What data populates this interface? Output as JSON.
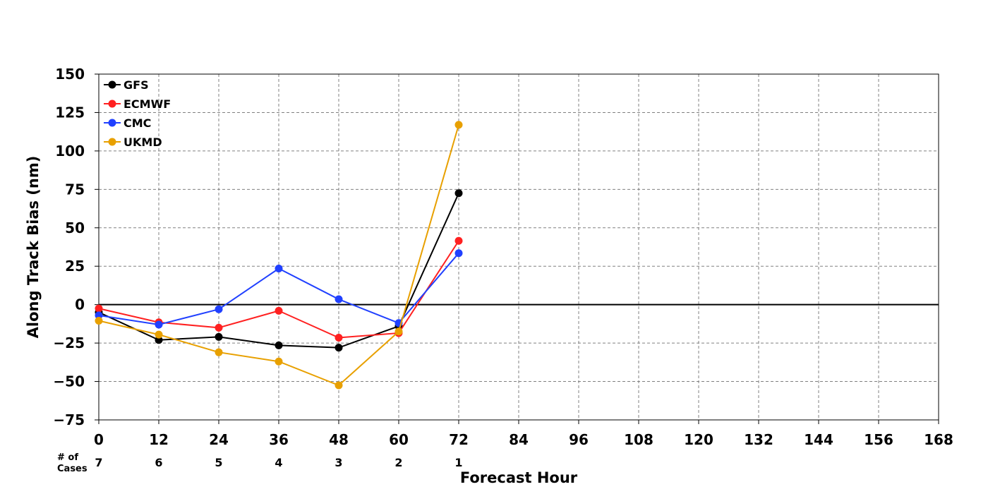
{
  "chart_data": {
    "type": "line",
    "xlabel": "Forecast Hour",
    "ylabel": "Along Track Bias (nm)",
    "xlim": [
      0,
      168
    ],
    "ylim": [
      -75,
      150
    ],
    "x_ticks": [
      0,
      12,
      24,
      36,
      48,
      60,
      72,
      84,
      96,
      108,
      120,
      132,
      144,
      156,
      168
    ],
    "y_ticks": [
      -75,
      -50,
      -25,
      0,
      25,
      50,
      75,
      100,
      125,
      150
    ],
    "x_tick_labels": [
      "0",
      "12",
      "24",
      "36",
      "48",
      "60",
      "72",
      "84",
      "96",
      "108",
      "120",
      "132",
      "144",
      "156",
      "168"
    ],
    "y_tick_labels": [
      "−75",
      "−50",
      "−25",
      "0",
      "25",
      "50",
      "75",
      "100",
      "125",
      "150"
    ],
    "grid": true,
    "grid_style": "dashed",
    "zero_line": true,
    "legend_position": "top-left",
    "x": [
      0,
      12,
      24,
      36,
      48,
      60,
      72
    ],
    "series": [
      {
        "name": "GFS",
        "color": "#000000",
        "values": [
          -5,
          -23,
          -21,
          -26.5,
          -28,
          -14,
          72.5
        ]
      },
      {
        "name": "ECMWF",
        "color": "#ff2020",
        "values": [
          -2.5,
          -11.5,
          -15,
          -4,
          -21.5,
          -18.5,
          41.5
        ]
      },
      {
        "name": "CMC",
        "color": "#2040ff",
        "values": [
          -7,
          -13,
          -3,
          23.5,
          3.5,
          -12,
          33.5
        ]
      },
      {
        "name": "UKMD",
        "color": "#e8a000",
        "values": [
          -10.5,
          -19.5,
          -31,
          -37,
          -52.5,
          -17.5,
          117
        ]
      }
    ],
    "cases": {
      "title_line1": "# of",
      "title_line2": "Cases",
      "x": [
        0,
        12,
        24,
        36,
        48,
        60,
        72
      ],
      "labels": [
        "7",
        "6",
        "5",
        "4",
        "3",
        "2",
        "1"
      ]
    }
  }
}
